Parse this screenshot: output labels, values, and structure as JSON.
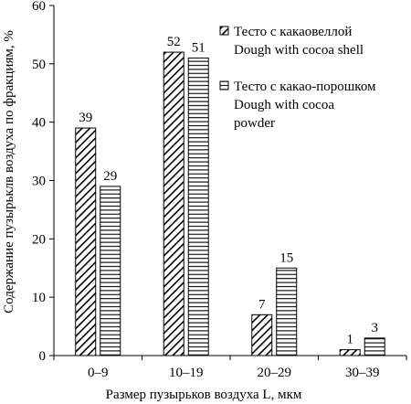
{
  "chart_data": {
    "type": "bar",
    "categories": [
      "0–9",
      "10–19",
      "20–29",
      "30–39"
    ],
    "series": [
      {
        "name": "Тесто  с какаовеллой Dough with cocoa shell",
        "values": [
          39,
          52,
          7,
          1
        ],
        "pattern": "diagonal-hatch"
      },
      {
        "name": "Тесто с какао-порошком Dough with cocoa powder",
        "values": [
          29,
          51,
          15,
          3
        ],
        "pattern": "horizontal-hatch"
      }
    ],
    "data_labels": [
      [
        "39",
        "52",
        "7",
        "1"
      ],
      [
        "29",
        "51",
        "15",
        "3"
      ]
    ],
    "xlabel": "Размер пузырьков воздуха L, мкм",
    "ylabel": "Содержание пузырьклв воздуха по фракциям, %",
    "ylim": [
      0,
      60
    ],
    "yticks": [
      "0",
      "10",
      "20",
      "30",
      "40",
      "50",
      "60"
    ],
    "grid": false,
    "legend_position": "top-right",
    "legend": [
      {
        "lines": [
          "Тесто  с какаовеллой",
          "Dough with cocoa shell"
        ],
        "pattern": "diagonal-hatch"
      },
      {
        "lines": [
          "Тесто с какао-порошком",
          "Dough with cocoa",
          "powder"
        ],
        "pattern": "horizontal-hatch"
      }
    ],
    "colors": {
      "bar_fill": "#ffffff",
      "stroke": "#000000"
    }
  }
}
